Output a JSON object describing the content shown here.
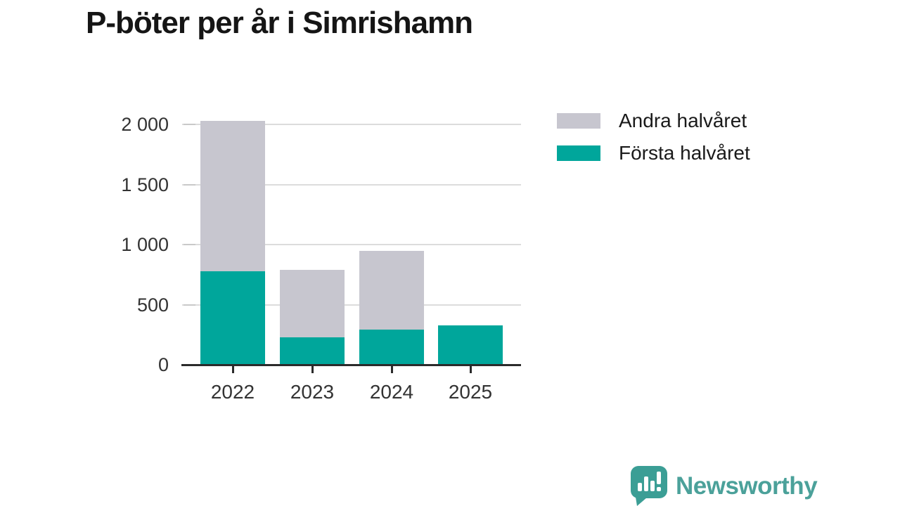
{
  "title": "P-böter per år i Simrishamn",
  "chart_data": {
    "type": "bar",
    "stacked": true,
    "title": "P-böter per år i Simrishamn",
    "categories": [
      "2022",
      "2023",
      "2024",
      "2025"
    ],
    "series": [
      {
        "name": "Första halvåret",
        "color": "#00a69b",
        "values": [
          780,
          230,
          290,
          330
        ]
      },
      {
        "name": "Andra halvåret",
        "color": "#c7c6cf",
        "values": [
          1250,
          560,
          655,
          0
        ]
      }
    ],
    "legend": [
      {
        "label": "Andra halvåret",
        "color": "#c7c6cf"
      },
      {
        "label": "Första halvåret",
        "color": "#00a69b"
      }
    ],
    "xlabel": "",
    "ylabel": "",
    "ylim": [
      0,
      2000
    ],
    "yticks": [
      {
        "value": 0,
        "label": "0"
      },
      {
        "value": 500,
        "label": "500"
      },
      {
        "value": 1000,
        "label": "1 000"
      },
      {
        "value": 1500,
        "label": "1 500"
      },
      {
        "value": 2000,
        "label": "2 000"
      }
    ],
    "grid": true,
    "legend_position": "top-right"
  },
  "branding": {
    "wordmark": "Newsworthy",
    "logo_icon": "newsworthy-speech-bubble-chart-icon",
    "wordmark_color": "#4ba19a",
    "icon_color": "#3b9e95"
  },
  "colors": {
    "background": "#ffffff",
    "gridline": "#dcdcdc",
    "axis": "#2b2b2b",
    "tick_label": "#333333",
    "title": "#151515"
  }
}
